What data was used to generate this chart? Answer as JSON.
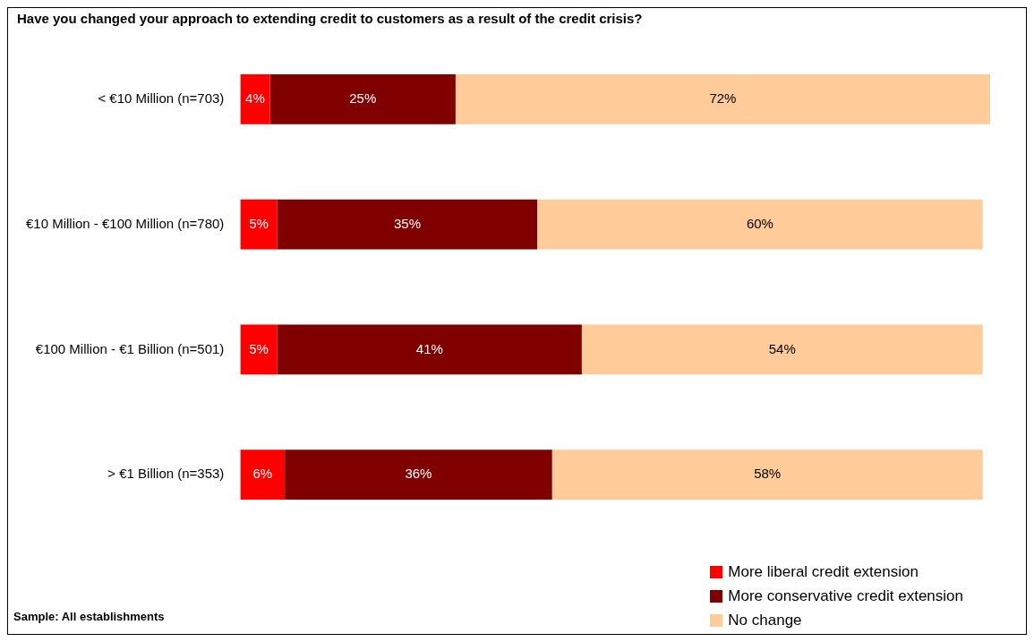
{
  "chart_data": {
    "type": "bar",
    "orientation": "horizontal",
    "stacked": true,
    "title": "Have you changed your approach to extending credit to customers as a result of the credit crisis?",
    "categories": [
      "< €10 Million (n=703)",
      "€10 Million - €100 Million (n=780)",
      "€100 Million - €1 Billion (n=501)",
      "> €1 Billion (n=353)"
    ],
    "series": [
      {
        "name": "More liberal credit extension",
        "color": "#ff0000",
        "values": [
          4,
          5,
          5,
          6
        ],
        "value_labels": [
          "4%",
          "5%",
          "5%",
          "6%"
        ]
      },
      {
        "name": "More conservative credit extension",
        "color": "#800000",
        "values": [
          25,
          35,
          41,
          36
        ],
        "value_labels": [
          "25%",
          "35%",
          "41%",
          "36%"
        ]
      },
      {
        "name": "No change",
        "color": "#ffcc99",
        "values": [
          72,
          60,
          54,
          58
        ],
        "value_labels": [
          "72%",
          "60%",
          "54%",
          "58%"
        ]
      }
    ],
    "grid": false,
    "legend": "bottom right",
    "tick_labels": "y",
    "annotations": [
      "Sample: All establishments"
    ]
  }
}
